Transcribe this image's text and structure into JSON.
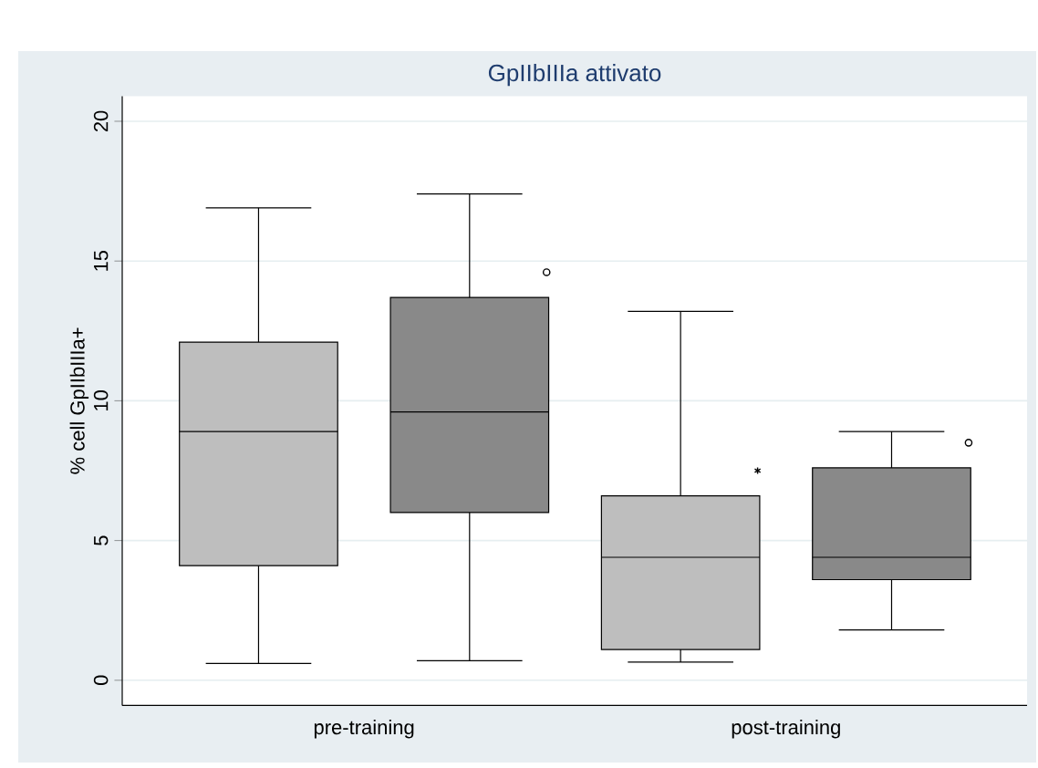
{
  "chart_data": {
    "type": "box",
    "title": "GpIIbIIIa attivato",
    "ylabel": "% cell GpIIbIIIa+",
    "categories": [
      "pre-training",
      "post-training"
    ],
    "ylim": [
      -0.9,
      20.9
    ],
    "yticks": [
      0,
      5,
      10,
      15,
      20
    ],
    "grid": "y",
    "series": [
      {
        "color": "#bebebe",
        "marker": "star",
        "boxes": [
          {
            "low": 0.6,
            "q1": 4.1,
            "median": 8.9,
            "q3": 12.1,
            "high": 16.9
          },
          {
            "low": 0.65,
            "q1": 1.1,
            "median": 4.4,
            "q3": 6.6,
            "high": 13.2,
            "outliers": [
              7.5
            ]
          }
        ]
      },
      {
        "color": "#898989",
        "marker": "circle",
        "boxes": [
          {
            "low": 0.7,
            "q1": 6.0,
            "median": 9.6,
            "q3": 13.7,
            "high": 17.4,
            "outliers": [
              14.6
            ]
          },
          {
            "low": 1.8,
            "q1": 3.6,
            "median": 4.4,
            "q3": 7.6,
            "high": 8.9,
            "outliers": [
              8.5
            ]
          }
        ]
      }
    ]
  }
}
